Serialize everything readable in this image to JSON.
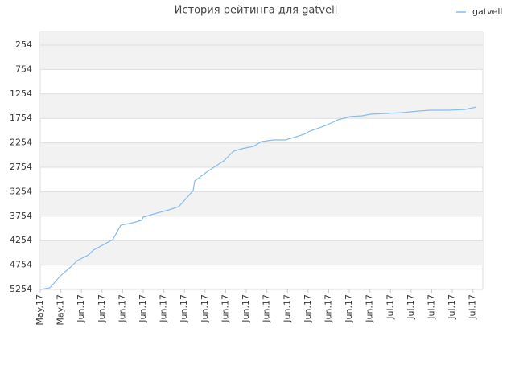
{
  "chart_data": {
    "type": "line",
    "title": "История рейтинга для gatvell",
    "x": [
      0,
      0.47,
      0.98,
      1.48,
      1.8,
      2.34,
      2.58,
      3.52,
      3.91,
      4.49,
      4.92,
      5.0,
      5.66,
      6.25,
      6.72,
      7.11,
      7.42,
      7.5,
      8.13,
      8.91,
      9.38,
      9.77,
      10.35,
      10.74,
      11.33,
      11.91,
      12.81,
      13.09,
      13.87,
      14.45,
      15.04,
      15.63,
      16.02,
      16.8,
      17.58,
      18.36,
      18.95,
      19.84,
      20.63,
      21.17
    ],
    "series": [
      {
        "name": "gatvell",
        "color": "#88bbee",
        "values": [
          5254,
          5221,
          4975,
          4794,
          4662,
          4547,
          4448,
          4234,
          3938,
          3889,
          3840,
          3774,
          3692,
          3626,
          3560,
          3379,
          3231,
          3034,
          2836,
          2623,
          2425,
          2376,
          2326,
          2228,
          2195,
          2195,
          2080,
          2014,
          1899,
          1784,
          1718,
          1702,
          1669,
          1652,
          1636,
          1603,
          1586,
          1586,
          1570,
          1521
        ]
      }
    ],
    "xlim": [
      0,
      21.48
    ],
    "xticks": [
      {
        "value": 0,
        "label": "May.17"
      },
      {
        "value": 1,
        "label": "May.17"
      },
      {
        "value": 2,
        "label": "Jun.17"
      },
      {
        "value": 3,
        "label": "Jun.17"
      },
      {
        "value": 4,
        "label": "Jun.17"
      },
      {
        "value": 5,
        "label": "Jun.17"
      },
      {
        "value": 6,
        "label": "Jun.17"
      },
      {
        "value": 7,
        "label": "Jun.17"
      },
      {
        "value": 8,
        "label": "Jun.17"
      },
      {
        "value": 9,
        "label": "Jun.17"
      },
      {
        "value": 10,
        "label": "Jun.17"
      },
      {
        "value": 11,
        "label": "Jun.17"
      },
      {
        "value": 12,
        "label": "Jun.17"
      },
      {
        "value": 13,
        "label": "Jun.17"
      },
      {
        "value": 14,
        "label": "Jun.17"
      },
      {
        "value": 15,
        "label": "Jun.17"
      },
      {
        "value": 16,
        "label": "Jun.17"
      },
      {
        "value": 17,
        "label": "Jul.17"
      },
      {
        "value": 18,
        "label": "Jul.17"
      },
      {
        "value": 19,
        "label": "Jul.17"
      },
      {
        "value": 20,
        "label": "Jul.17"
      },
      {
        "value": 21,
        "label": "Jul.17"
      }
    ],
    "ylim": [
      5254,
      -9
    ],
    "yticks": [
      254,
      754,
      1254,
      1754,
      2254,
      2754,
      3254,
      3754,
      4254,
      4754,
      5254
    ],
    "grid": true,
    "legend": "top-right"
  }
}
